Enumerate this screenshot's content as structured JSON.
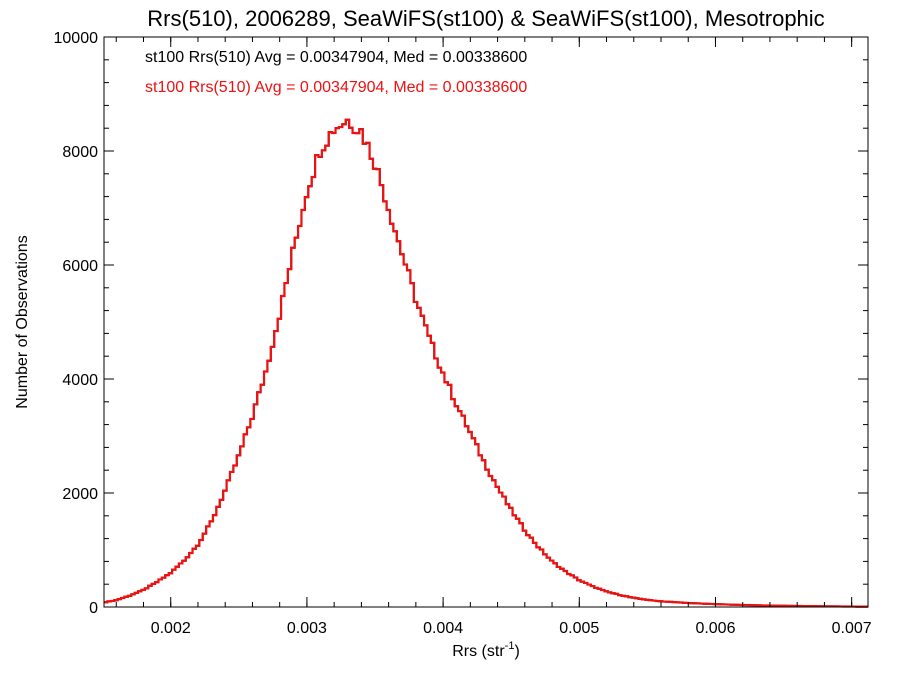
{
  "chart_data": {
    "type": "histogram",
    "title": "Rrs(510), 2006289, SeaWiFS(st100) & SeaWiFS(st100), Mesotrophic",
    "xlabel_base": "Rrs (str",
    "xlabel_sup": "-1",
    "xlabel_close": ")",
    "ylabel": "Number of Observations",
    "xlim": [
      0.00151,
      0.00712
    ],
    "ylim": [
      0,
      10000
    ],
    "x_ticks": [
      0.002,
      0.003,
      0.004,
      0.005,
      0.006,
      0.007
    ],
    "x_tick_labels": [
      "0.002",
      "0.003",
      "0.004",
      "0.005",
      "0.006",
      "0.007"
    ],
    "y_ticks": [
      0,
      2000,
      4000,
      6000,
      8000,
      10000
    ],
    "y_tick_labels": [
      "0",
      "2000",
      "4000",
      "6000",
      "8000",
      "10000"
    ],
    "bin_width": 2.5e-05,
    "series": [
      {
        "label": "st100 Rrs(510) Avg = 0.00347904, Med = 0.00338600",
        "color": "#000000",
        "points": [
          [
            0.00151,
            80
          ],
          [
            0.0016,
            120
          ],
          [
            0.0017,
            200
          ],
          [
            0.0018,
            300
          ],
          [
            0.0019,
            440
          ],
          [
            0.002,
            600
          ],
          [
            0.0021,
            820
          ],
          [
            0.0022,
            1100
          ],
          [
            0.0023,
            1500
          ],
          [
            0.0024,
            2050
          ],
          [
            0.0025,
            2650
          ],
          [
            0.0026,
            3350
          ],
          [
            0.0027,
            4150
          ],
          [
            0.0028,
            5150
          ],
          [
            0.0029,
            6250
          ],
          [
            0.003,
            7300
          ],
          [
            0.0031,
            8050
          ],
          [
            0.0032,
            8400
          ],
          [
            0.0033,
            8550
          ],
          [
            0.0034,
            8350
          ],
          [
            0.0035,
            7800
          ],
          [
            0.0036,
            7000
          ],
          [
            0.0037,
            6200
          ],
          [
            0.0038,
            5400
          ],
          [
            0.0039,
            4700
          ],
          [
            0.004,
            4100
          ],
          [
            0.0041,
            3550
          ],
          [
            0.0042,
            3050
          ],
          [
            0.0043,
            2550
          ],
          [
            0.0044,
            2100
          ],
          [
            0.0045,
            1700
          ],
          [
            0.0046,
            1350
          ],
          [
            0.0047,
            1050
          ],
          [
            0.0048,
            800
          ],
          [
            0.0049,
            620
          ],
          [
            0.005,
            470
          ],
          [
            0.0051,
            360
          ],
          [
            0.0052,
            270
          ],
          [
            0.0053,
            210
          ],
          [
            0.0054,
            160
          ],
          [
            0.0055,
            125
          ],
          [
            0.0056,
            100
          ],
          [
            0.0058,
            70
          ],
          [
            0.006,
            50
          ],
          [
            0.0062,
            35
          ],
          [
            0.0064,
            25
          ],
          [
            0.0066,
            18
          ],
          [
            0.0068,
            12
          ],
          [
            0.007,
            8
          ],
          [
            0.00712,
            6
          ]
        ]
      },
      {
        "label": "st100 Rrs(510) Avg = 0.00347904, Med = 0.00338600",
        "color": "#ee1111",
        "points": [
          [
            0.00151,
            80
          ],
          [
            0.0016,
            120
          ],
          [
            0.0017,
            200
          ],
          [
            0.0018,
            300
          ],
          [
            0.0019,
            440
          ],
          [
            0.002,
            600
          ],
          [
            0.0021,
            820
          ],
          [
            0.0022,
            1100
          ],
          [
            0.0023,
            1500
          ],
          [
            0.0024,
            2050
          ],
          [
            0.0025,
            2650
          ],
          [
            0.0026,
            3350
          ],
          [
            0.0027,
            4150
          ],
          [
            0.0028,
            5150
          ],
          [
            0.0029,
            6250
          ],
          [
            0.003,
            7300
          ],
          [
            0.0031,
            8050
          ],
          [
            0.0032,
            8400
          ],
          [
            0.0033,
            8550
          ],
          [
            0.0034,
            8350
          ],
          [
            0.0035,
            7800
          ],
          [
            0.0036,
            7000
          ],
          [
            0.0037,
            6200
          ],
          [
            0.0038,
            5400
          ],
          [
            0.0039,
            4700
          ],
          [
            0.004,
            4100
          ],
          [
            0.0041,
            3550
          ],
          [
            0.0042,
            3050
          ],
          [
            0.0043,
            2550
          ],
          [
            0.0044,
            2100
          ],
          [
            0.0045,
            1700
          ],
          [
            0.0046,
            1350
          ],
          [
            0.0047,
            1050
          ],
          [
            0.0048,
            800
          ],
          [
            0.0049,
            620
          ],
          [
            0.005,
            470
          ],
          [
            0.0051,
            360
          ],
          [
            0.0052,
            270
          ],
          [
            0.0053,
            210
          ],
          [
            0.0054,
            160
          ],
          [
            0.0055,
            125
          ],
          [
            0.0056,
            100
          ],
          [
            0.0058,
            70
          ],
          [
            0.006,
            50
          ],
          [
            0.0062,
            35
          ],
          [
            0.0064,
            25
          ],
          [
            0.0066,
            18
          ],
          [
            0.0068,
            12
          ],
          [
            0.007,
            8
          ],
          [
            0.00712,
            6
          ]
        ]
      }
    ]
  }
}
